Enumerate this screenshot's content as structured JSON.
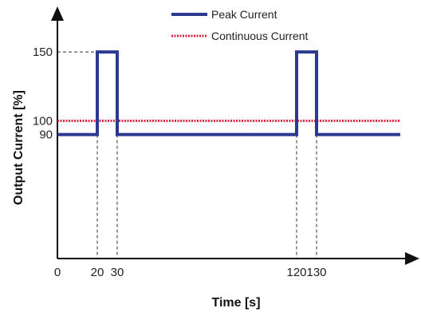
{
  "chart_data": {
    "type": "line",
    "xlabel": "Time [s]",
    "ylabel": "Output Current [%]",
    "xlim": [
      0,
      172
    ],
    "ylim": [
      0,
      175
    ],
    "x_ticks": [
      "0",
      "20",
      "30",
      "120",
      "130"
    ],
    "y_ticks": [
      "150",
      "100",
      "90"
    ],
    "legend_position": "top-center",
    "grid": false,
    "series": [
      {
        "name": "Peak Current",
        "color": "#2b3990",
        "style": "solid",
        "x": [
          0,
          20,
          20,
          30,
          30,
          120,
          120,
          130,
          130,
          172
        ],
        "y": [
          90,
          90,
          150,
          150,
          90,
          90,
          150,
          150,
          90,
          90
        ]
      },
      {
        "name": "Continuous Current",
        "color": "#d7263d",
        "style": "dotted",
        "x": [
          0,
          172
        ],
        "y": [
          100,
          100
        ]
      }
    ],
    "reference_lines": {
      "vertical_at": [
        20,
        30,
        120,
        130
      ],
      "horizontal_at": [
        150
      ]
    }
  }
}
